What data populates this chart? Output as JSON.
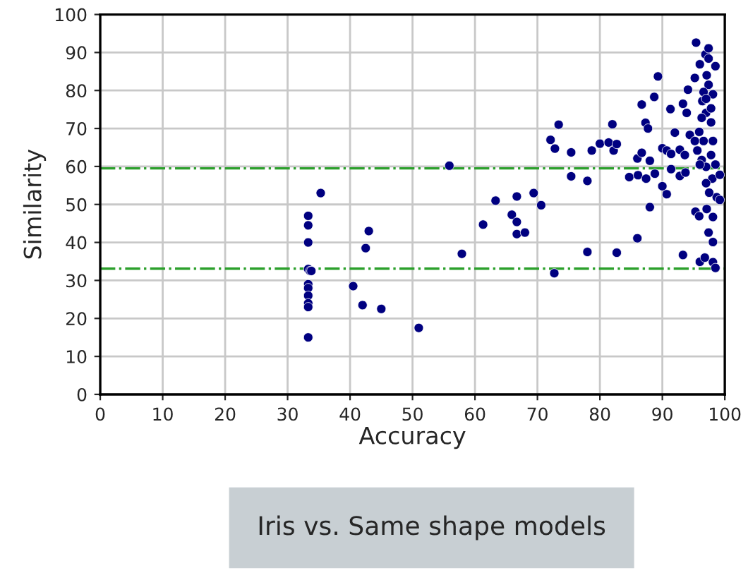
{
  "chart_data": {
    "type": "scatter",
    "xlabel": "Accuracy",
    "ylabel": "Similarity",
    "xlim": [
      0,
      100
    ],
    "ylim": [
      0,
      100
    ],
    "xticks": [
      0,
      10,
      20,
      30,
      40,
      50,
      60,
      70,
      80,
      90,
      100
    ],
    "yticks": [
      0,
      10,
      20,
      30,
      40,
      50,
      60,
      70,
      80,
      90,
      100
    ],
    "grid": true,
    "marker": "circle",
    "series": [
      {
        "color": "#000080",
        "x": [
          33.3,
          33.3,
          33.3,
          33.3,
          33.6,
          33.8,
          33.3,
          33.3,
          33.3,
          33.3,
          33.3,
          33.3,
          35.3,
          40.5,
          42,
          45,
          43,
          42.5,
          51,
          55.9,
          57.9,
          61.3,
          63.3,
          65.9,
          66.7,
          66.7,
          66.7,
          68,
          69.4,
          70.6,
          72.7,
          72.1,
          72.8,
          73.4,
          75.4,
          75.4,
          78,
          78,
          78.7,
          80,
          81.4,
          82,
          82.2,
          82.7,
          82.7,
          84.7,
          86.1,
          86,
          86,
          86.7,
          86.7,
          87.3,
          87.4,
          88,
          88,
          87.7,
          88.7,
          88.8,
          89.3,
          90,
          90,
          90.7,
          90.7,
          91.3,
          91.4,
          91.4,
          92,
          92.8,
          92.8,
          93.3,
          93.3,
          93.6,
          93.7,
          93.9,
          94.1,
          94.4,
          95.2,
          95.4,
          95.3,
          95.9,
          96,
          96,
          96.4,
          96.6,
          96.8,
          96.9,
          97.1,
          97.4,
          97.4,
          97.4,
          97.4,
          97.8,
          98,
          98.1,
          98.1,
          98.1,
          98.5,
          98.5,
          98.7,
          99.2,
          99.2,
          95.6,
          96.3,
          97,
          97.8,
          97,
          97.5,
          95.9,
          97,
          98.1,
          97.1,
          96.3,
          95.2,
          96.6,
          98.1,
          98.5,
          96,
          97,
          97.8
        ],
        "values": [
          47,
          44.5,
          40,
          33,
          32.5,
          32.5,
          29,
          28,
          26,
          24,
          23,
          15,
          53,
          28.5,
          23.5,
          22.5,
          43,
          38.5,
          17.5,
          60.2,
          37,
          44.7,
          51,
          47.3,
          45.4,
          52.1,
          42.2,
          42.6,
          53,
          49.8,
          31.9,
          67,
          64.7,
          71,
          63.7,
          57.4,
          56.2,
          37.5,
          64.2,
          66,
          66.3,
          71.1,
          64.2,
          65.9,
          37.3,
          57.2,
          57.7,
          41.1,
          62.1,
          63.6,
          76.3,
          71.5,
          56.8,
          61.5,
          49.3,
          70,
          78.3,
          58.1,
          83.7,
          64.8,
          54.8,
          52.7,
          64.2,
          75.1,
          63.3,
          59.3,
          68.9,
          57.5,
          64.4,
          76.5,
          36.7,
          63,
          58.4,
          74.1,
          80.2,
          68.3,
          83.3,
          92.6,
          48.1,
          46.9,
          86.9,
          34.9,
          77.2,
          66.7,
          36,
          89.5,
          48.8,
          91.1,
          81.5,
          42.6,
          88.4,
          71.6,
          56.8,
          46.7,
          40.1,
          34.8,
          33.3,
          86.4,
          51.9,
          51.2,
          57.8,
          64.2,
          61.7,
          59.9,
          63,
          55.6,
          53.1,
          69.1,
          74.1,
          79,
          84,
          72.8,
          66.7,
          79.6,
          66.7,
          60.5,
          60.5,
          77.8,
          75.3
        ]
      }
    ],
    "ref_lines": [
      {
        "axis": "y",
        "value": 59.5,
        "color": "#2ca02c",
        "line_style": "dashdot"
      },
      {
        "axis": "y",
        "value": 33.1,
        "color": "#2ca02c",
        "line_style": "dashdot"
      }
    ],
    "annotations": [
      "Iris vs. Same shape models"
    ]
  }
}
